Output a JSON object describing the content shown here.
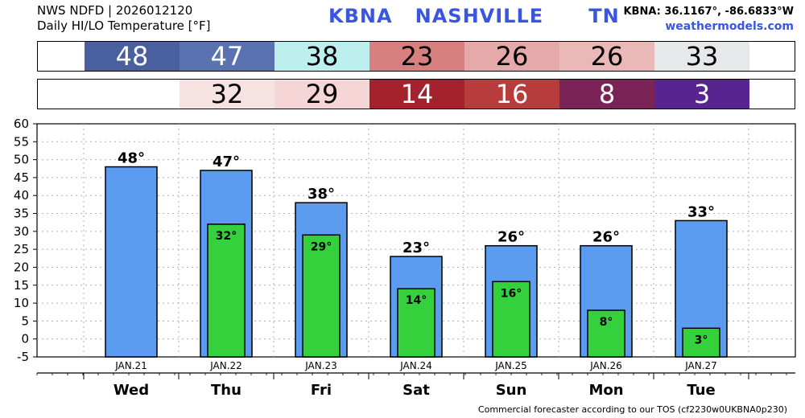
{
  "header": {
    "line1": "NWS NDFD | 2026012120",
    "line2": "Daily HI/LO Temperature [°F]",
    "station": "KBNA   NASHVILLE      TN",
    "coords": "KBNA: 36.1167°, -86.6833°W",
    "site": "weathermodels.com"
  },
  "strips": {
    "hi": [
      {
        "label": "48",
        "bg": "#4a5f9e",
        "fg": "#ffffff"
      },
      {
        "label": "47",
        "bg": "#5a72b0",
        "fg": "#ffffff"
      },
      {
        "label": "38",
        "bg": "#bdefef",
        "fg": "#000000"
      },
      {
        "label": "23",
        "bg": "#d88080",
        "fg": "#000000"
      },
      {
        "label": "26",
        "bg": "#e6a9a9",
        "fg": "#000000"
      },
      {
        "label": "26",
        "bg": "#ebb8b8",
        "fg": "#000000"
      },
      {
        "label": "33",
        "bg": "#e6e9e9",
        "fg": "#000000"
      }
    ],
    "lo": [
      {
        "label": "",
        "bg": "#ffffff",
        "fg": "#000000"
      },
      {
        "label": "32",
        "bg": "#f7e2e2",
        "fg": "#000000"
      },
      {
        "label": "29",
        "bg": "#f5d5d5",
        "fg": "#000000"
      },
      {
        "label": "14",
        "bg": "#a3222e",
        "fg": "#ffffff"
      },
      {
        "label": "16",
        "bg": "#b73c3c",
        "fg": "#ffffff"
      },
      {
        "label": "8",
        "bg": "#7b2356",
        "fg": "#ffffff"
      },
      {
        "label": "3",
        "bg": "#572490",
        "fg": "#ffffff"
      }
    ]
  },
  "chart_data": {
    "type": "bar",
    "categories": [
      "JAN.21",
      "JAN.22",
      "JAN.23",
      "JAN.24",
      "JAN.25",
      "JAN.26",
      "JAN.27"
    ],
    "days": [
      "Wed",
      "Thu",
      "Fri",
      "Sat",
      "Sun",
      "Mon",
      "Tue"
    ],
    "series": [
      {
        "values": [
          48,
          47,
          38,
          23,
          26,
          26,
          33
        ],
        "labels": [
          "48°",
          "47°",
          "38°",
          "23°",
          "26°",
          "26°",
          "33°"
        ],
        "color": "#5b9cf0"
      },
      {
        "values": [
          null,
          32,
          29,
          14,
          16,
          8,
          3
        ],
        "labels": [
          "",
          "32°",
          "29°",
          "14°",
          "16°",
          "8°",
          "3°"
        ],
        "color": "#35d13d"
      }
    ],
    "yticks": [
      "-5",
      "0",
      "5",
      "10",
      "15",
      "20",
      "25",
      "30",
      "35",
      "40",
      "45",
      "50",
      "55",
      "60"
    ],
    "ylim": [
      -5,
      60
    ],
    "grid": true
  },
  "footer": "Commercial forecaster according to our TOS (cf2230w0UKBNA0p230)"
}
